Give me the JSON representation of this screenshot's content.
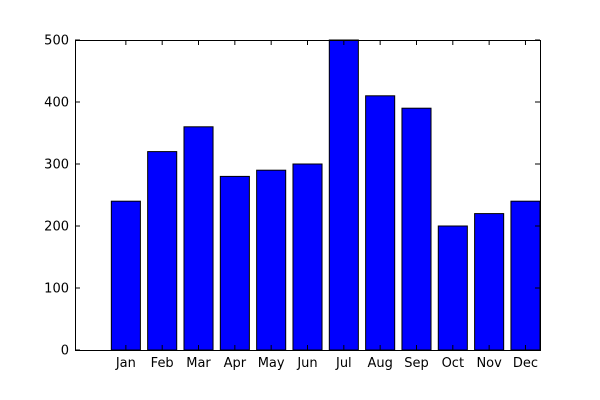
{
  "chart_data": {
    "type": "bar",
    "categories": [
      "Jan",
      "Feb",
      "Mar",
      "Apr",
      "May",
      "Jun",
      "Jul",
      "Aug",
      "Sep",
      "Oct",
      "Nov",
      "Dec"
    ],
    "values": [
      240,
      320,
      360,
      280,
      290,
      300,
      500,
      410,
      390,
      200,
      220,
      240
    ],
    "title": "",
    "xlabel": "",
    "ylabel": "",
    "ylim": [
      0,
      500
    ],
    "y_ticks": [
      0,
      100,
      200,
      300,
      400,
      500
    ],
    "grid": false,
    "colors": {
      "bar_fill": "#0000ff",
      "bar_edge": "#000000",
      "axes": "#000000",
      "background": "#ffffff"
    }
  }
}
